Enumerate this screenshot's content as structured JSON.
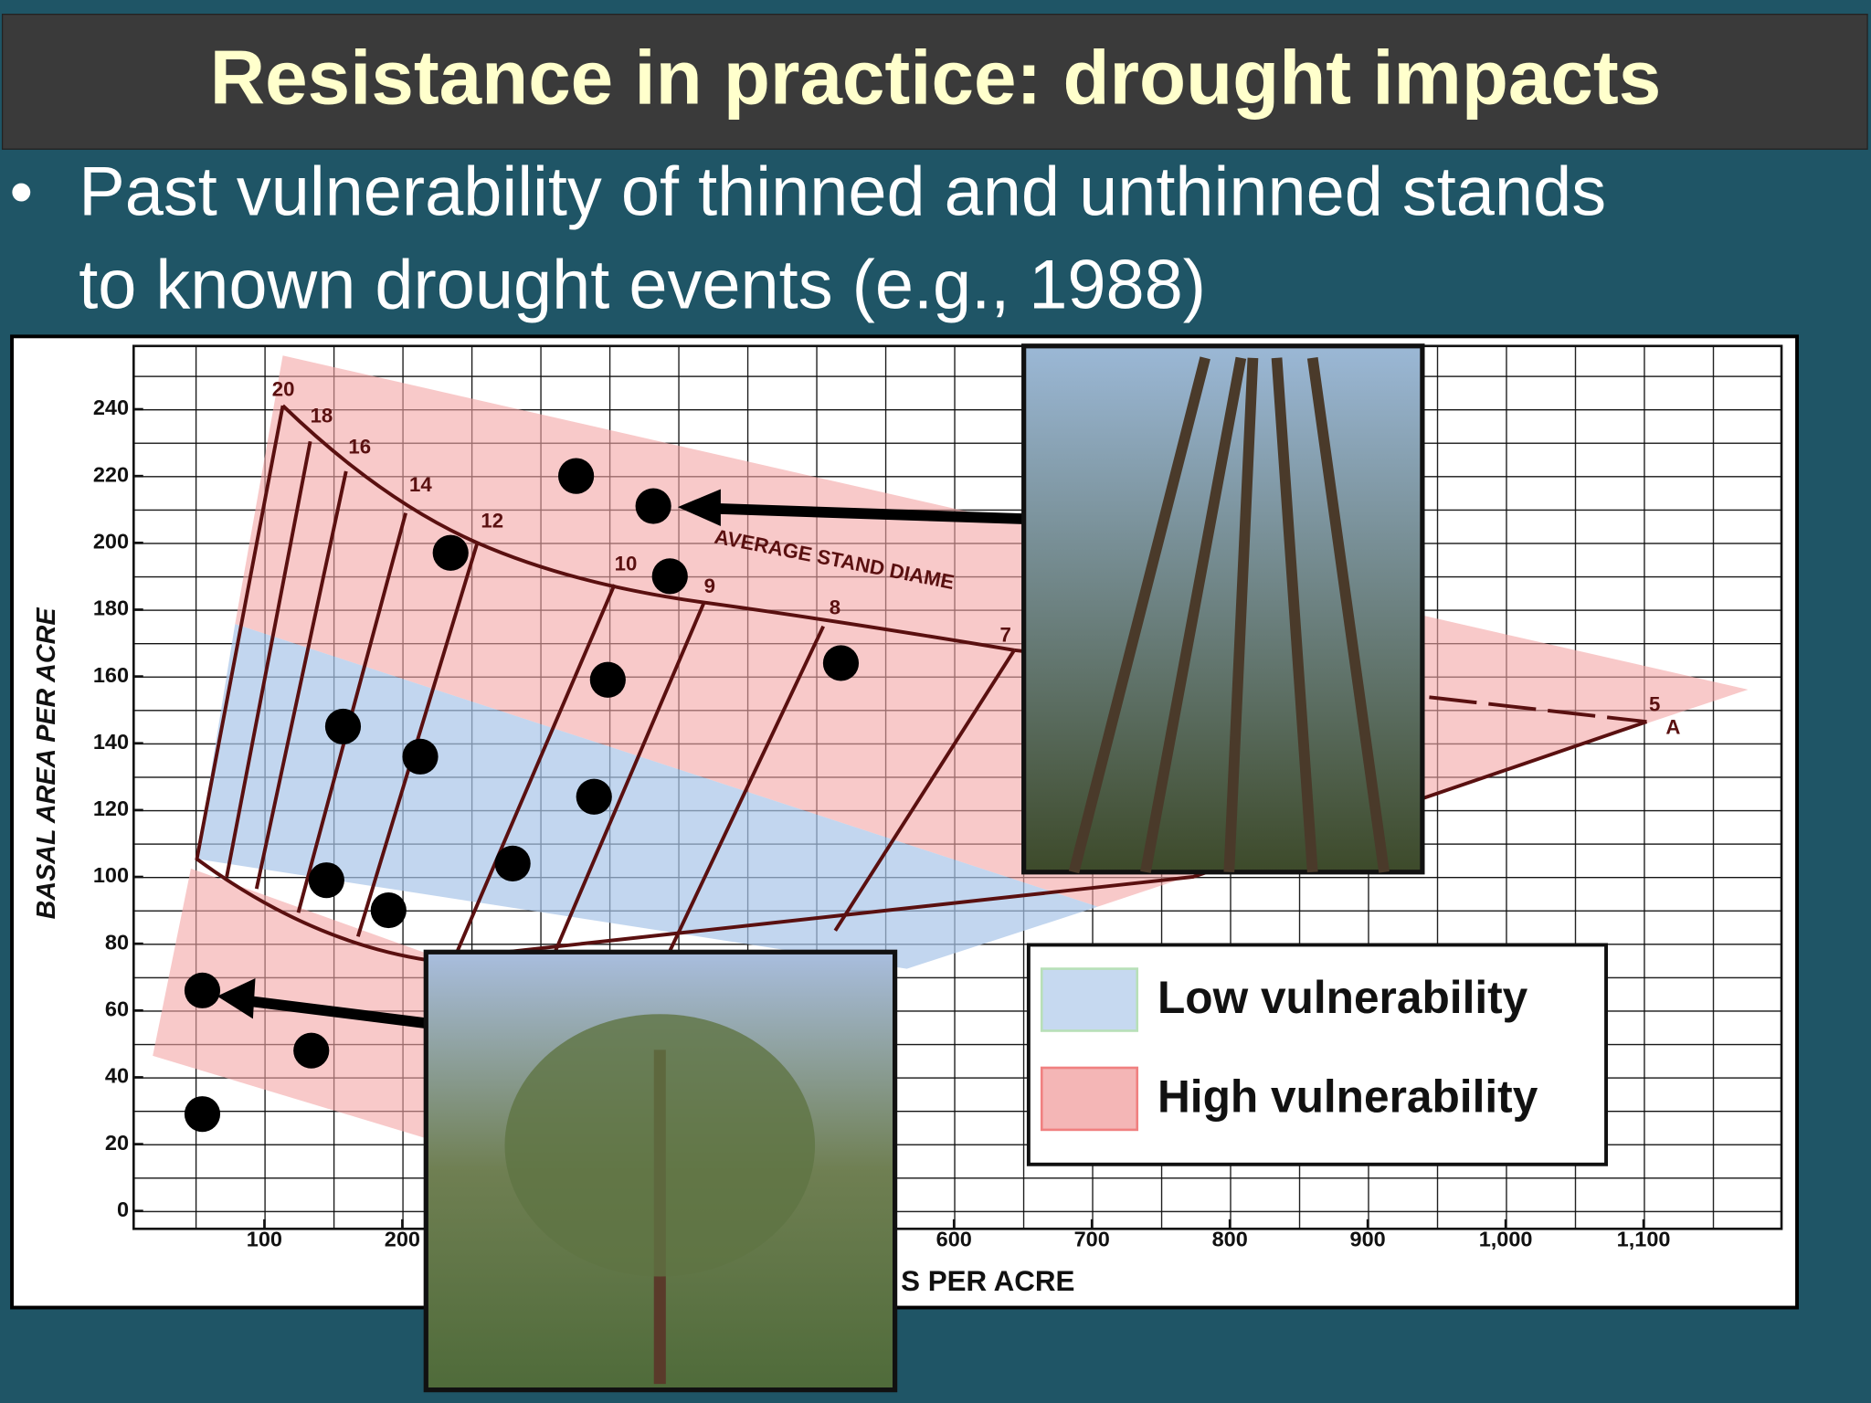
{
  "slide": {
    "title": "Resistance in practice: drought impacts",
    "bullet": [
      "Past vulnerability of thinned and unthinned stands",
      "to known drought events (e.g., 1988)"
    ]
  },
  "chart_data": {
    "type": "scatter",
    "y_label": "BASAL AREA PER ACRE",
    "x_label": "S PER ACRE",
    "xlim": [
      0,
      1200
    ],
    "ylim": [
      0,
      260
    ],
    "xticks": [
      100,
      200,
      600,
      700,
      800,
      900,
      {
        "value": 1000,
        "label": "1,000"
      },
      {
        "value": 1100,
        "label": "1,100"
      }
    ],
    "yticks": [
      0,
      20,
      40,
      60,
      80,
      100,
      120,
      140,
      160,
      180,
      200,
      220,
      240
    ],
    "color": "#000000",
    "x": [
      326,
      382,
      235,
      394,
      349,
      518,
      157,
      213,
      339,
      145,
      280,
      190,
      55,
      134,
      55
    ],
    "values": [
      220,
      211,
      197,
      190,
      159,
      164,
      145,
      136,
      124,
      99,
      104,
      90,
      66,
      48,
      29
    ],
    "annotations": [
      "20",
      "18",
      "16",
      "14",
      "12",
      "10",
      "9",
      "8",
      "7",
      "5",
      "A",
      "AVERAGE STAND DIAME"
    ],
    "regions": [
      {
        "name": "Low vulnerability",
        "color": "#c6d9f0"
      },
      {
        "name": "High vulnerability",
        "color": "#f4b6b6"
      }
    ]
  }
}
